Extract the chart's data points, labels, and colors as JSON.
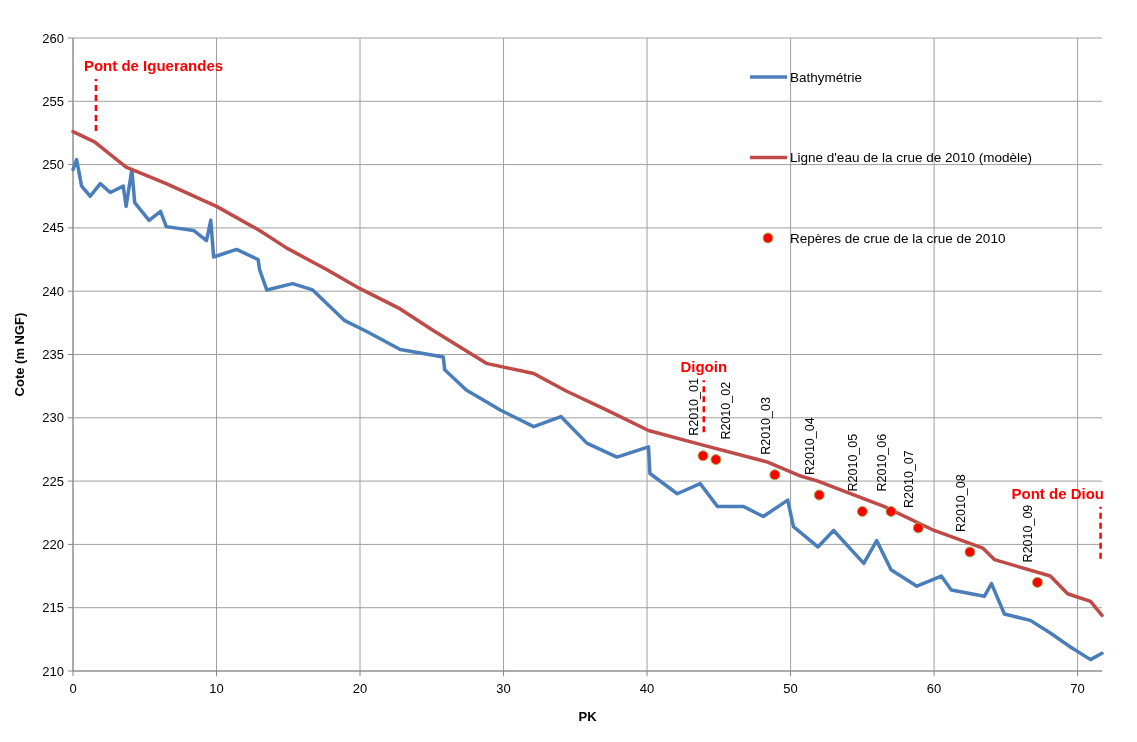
{
  "chart_data": {
    "type": "line",
    "xlabel": "PK",
    "ylabel": "Cote (m NGF)",
    "xlim": [
      0,
      71.7
    ],
    "ylim": [
      210,
      260
    ],
    "xticks": [
      0,
      10,
      20,
      30,
      40,
      50,
      60,
      70
    ],
    "yticks": [
      210,
      215,
      220,
      225,
      230,
      235,
      240,
      245,
      250,
      255,
      260
    ],
    "grid": true,
    "legend": "top right",
    "series": [
      {
        "name": "Bathymétrie",
        "color": "#4a7ebb",
        "x": [
          0,
          0.25,
          0.6,
          1.2,
          1.9,
          2.6,
          3.5,
          3.7,
          4.1,
          4.3,
          5.3,
          6.1,
          6.5,
          8.4,
          9.3,
          9.6,
          9.8,
          11.4,
          12.9,
          13.0,
          13.5,
          15.3,
          16.7,
          17.7,
          18.9,
          20.5,
          22.8,
          25.8,
          25.9,
          27.4,
          29.8,
          32.1,
          34.0,
          35.8,
          37.9,
          40.1,
          40.2,
          42.1,
          43.7,
          44.9,
          46.7,
          48.1,
          49.8,
          50.2,
          51.9,
          53.0,
          55.1,
          56.0,
          57.0,
          58.8,
          60.5,
          61.2,
          63.5,
          64.0,
          64.9,
          66.7,
          68.1,
          69.5,
          70.9,
          71.7
        ],
        "values": [
          249.6,
          250.4,
          248.3,
          247.5,
          248.5,
          247.8,
          248.3,
          246.7,
          249.6,
          247.0,
          245.6,
          246.3,
          245.1,
          244.8,
          244.0,
          245.6,
          242.7,
          243.3,
          242.5,
          241.7,
          240.1,
          240.6,
          240.1,
          239.0,
          237.7,
          236.8,
          235.4,
          234.8,
          233.8,
          232.2,
          230.6,
          229.3,
          230.1,
          228.0,
          226.9,
          227.7,
          225.6,
          224.0,
          224.8,
          223.0,
          223.0,
          222.2,
          223.5,
          221.4,
          219.8,
          221.1,
          218.5,
          220.3,
          218.0,
          216.7,
          217.5,
          216.4,
          215.9,
          216.9,
          214.5,
          214.0,
          213.0,
          211.9,
          210.9,
          211.4
        ]
      },
      {
        "name": "Ligne d'eau de la crue de 2010 (modèle)",
        "color": "#be4b48",
        "x": [
          0,
          1.5,
          3.7,
          6.5,
          10,
          13,
          14.9,
          17.7,
          20,
          22.8,
          25.1,
          28.8,
          32.1,
          34.4,
          37.2,
          40.1,
          43.7,
          48.4,
          50.7,
          51.9,
          56.5,
          60.0,
          63.4,
          64.2,
          68.1,
          69.3,
          70.9,
          71.7
        ],
        "values": [
          252.6,
          251.8,
          249.8,
          248.5,
          246.7,
          244.8,
          243.4,
          241.7,
          240.2,
          238.6,
          236.9,
          234.3,
          233.5,
          232.1,
          230.6,
          229.0,
          227.9,
          226.5,
          225.4,
          225.0,
          223.0,
          221.1,
          219.7,
          218.8,
          217.5,
          216.1,
          215.5,
          214.4
        ]
      },
      {
        "name": "Repères de crue de la crue de 2010",
        "type": "scatter",
        "marker": "circle",
        "color": "#ff0000",
        "x": [
          43.9,
          44.8,
          48.9,
          52.0,
          55.0,
          57.0,
          58.9,
          62.5,
          67.2
        ],
        "values": [
          227.0,
          226.7,
          225.5,
          223.9,
          222.6,
          222.6,
          221.3,
          219.4,
          217.0
        ],
        "value_labels": [
          "R2010_01",
          "R2010_02",
          "R2010_03",
          "R2010_04",
          "R2010_05",
          "R2010_06",
          "R2010_07",
          "R2010_08",
          "R2010_09"
        ]
      }
    ],
    "ref_lines": [
      {
        "axis": "x",
        "value": 1.6,
        "label": "Pont de Iguerandes",
        "color": "#ff0000",
        "line_style": "dashed"
      },
      {
        "axis": "x",
        "value": 43.95,
        "label": "Digoin",
        "color": "#ff0000",
        "line_style": "dashed"
      },
      {
        "axis": "x",
        "value": 71.6,
        "label": "Pont de Diou",
        "color": "#ff0000",
        "line_style": "dashed"
      }
    ]
  }
}
